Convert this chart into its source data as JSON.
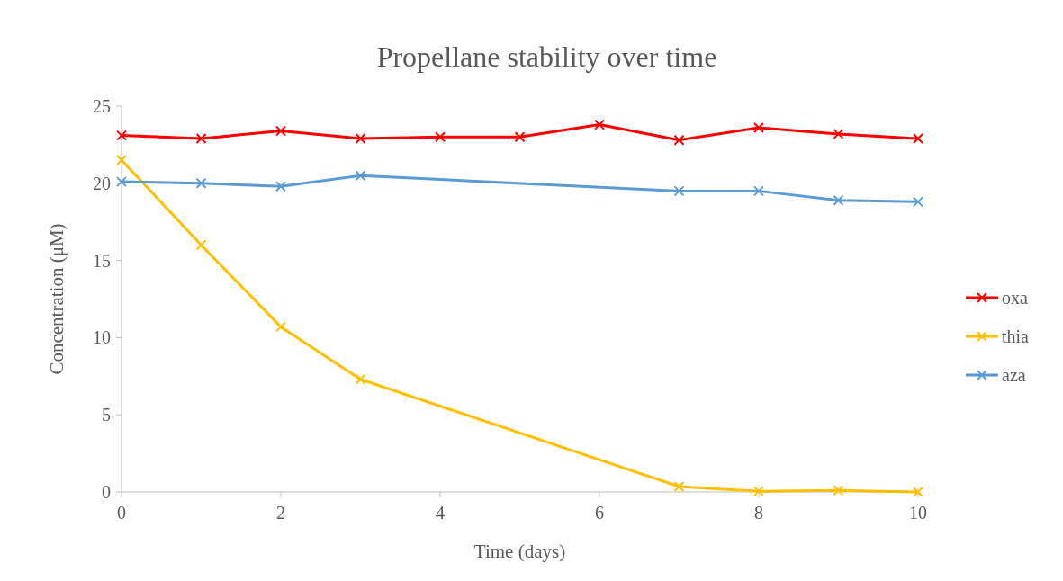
{
  "chart_data": {
    "type": "line",
    "title": "Propellane stability over time",
    "xlabel": "Time (days)",
    "ylabel": "Concentration (μM)",
    "xlim": [
      0,
      10
    ],
    "xticks": [
      0,
      2,
      4,
      6,
      8,
      10
    ],
    "ylim": [
      0,
      25
    ],
    "yticks": [
      0,
      5,
      10,
      15,
      20,
      25
    ],
    "grid": false,
    "legend": "right",
    "marker": "cross",
    "line_style": "solid",
    "series": [
      {
        "name": "oxa",
        "color": "#ff0000",
        "x": [
          0,
          1,
          2,
          3,
          4,
          5,
          6,
          7,
          8,
          9,
          10
        ],
        "values": [
          23.1,
          22.9,
          23.4,
          22.9,
          23.0,
          23.0,
          23.8,
          22.8,
          23.6,
          23.2,
          22.9
        ]
      },
      {
        "name": "thia",
        "color": "#ffc000",
        "x": [
          0,
          1,
          2,
          3,
          7,
          8,
          9,
          10
        ],
        "values": [
          21.5,
          16.0,
          10.7,
          7.3,
          0.35,
          0.05,
          0.1,
          0
        ]
      },
      {
        "name": "aza",
        "color": "#5b9bd5",
        "x": [
          0,
          1,
          2,
          3,
          7,
          8,
          9,
          10
        ],
        "values": [
          20.1,
          20.0,
          19.8,
          20.5,
          19.5,
          19.5,
          18.9,
          18.8
        ]
      }
    ]
  }
}
